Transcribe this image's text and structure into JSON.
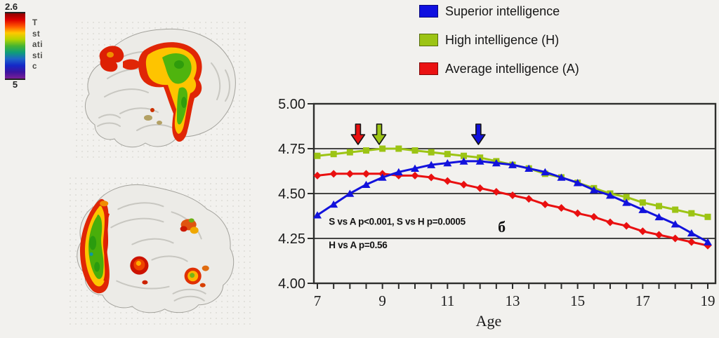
{
  "figure": {
    "background": "#f2f1ee",
    "axis_color": "#2e2e2c",
    "text_color": "#1c1c1c"
  },
  "colorbar": {
    "top_label": "2.6",
    "bottom_label": "5",
    "title": "T statistic",
    "title_vertical": [
      "T",
      "st",
      "ati",
      "sti",
      "c"
    ],
    "gradient": [
      "#8f0000",
      "#dd0000",
      "#ff5500",
      "#ffc800",
      "#b4d400",
      "#46b432",
      "#0f9e78",
      "#1e64c8",
      "#1428c8",
      "#3c14a0",
      "#7a1e96"
    ]
  },
  "legend": {
    "items": [
      {
        "label": "Superior intelligence",
        "color": "#0f10e0"
      },
      {
        "label": "High intelligence (H)",
        "color": "#9cc414"
      },
      {
        "label": "Average intelligence (A)",
        "color": "#ea1212"
      }
    ]
  },
  "chart_data": {
    "type": "line",
    "title": "",
    "xlabel": "Age",
    "ylabel": "",
    "xlim": [
      7,
      19
    ],
    "ylim": [
      4.0,
      5.0
    ],
    "grid": true,
    "legend_position": "top-right-outside",
    "x_tick_labels": [
      "7",
      "9",
      "11",
      "13",
      "15",
      "17",
      "19"
    ],
    "x_tick_values": [
      7,
      9,
      11,
      13,
      15,
      17,
      19
    ],
    "x_minor_tick_step": 0.5,
    "y_tick_labels": [
      "5.00",
      "4.75",
      "4.50",
      "4.25",
      "4.00"
    ],
    "y_tick_values": [
      5.0,
      4.75,
      4.5,
      4.25,
      4.0
    ],
    "grid_values": [
      4.75,
      4.5,
      4.25
    ],
    "x": [
      7,
      7.5,
      8,
      8.5,
      9,
      9.5,
      10,
      10.5,
      11,
      11.5,
      12,
      12.5,
      13,
      13.5,
      14,
      14.5,
      15,
      15.5,
      16,
      16.5,
      17,
      17.5,
      18,
      18.5,
      19
    ],
    "series": [
      {
        "name": "Superior intelligence",
        "color": "#1212dc",
        "marker": "triangle",
        "peak_age": 11.95,
        "values": [
          4.38,
          4.44,
          4.5,
          4.55,
          4.59,
          4.62,
          4.64,
          4.66,
          4.67,
          4.68,
          4.68,
          4.67,
          4.66,
          4.64,
          4.62,
          4.59,
          4.56,
          4.52,
          4.49,
          4.45,
          4.41,
          4.37,
          4.33,
          4.28,
          4.23
        ]
      },
      {
        "name": "High intelligence (H)",
        "color": "#9cc414",
        "marker": "square",
        "peak_age": 8.9,
        "values": [
          4.71,
          4.72,
          4.73,
          4.74,
          4.75,
          4.75,
          4.74,
          4.73,
          4.72,
          4.71,
          4.7,
          4.68,
          4.66,
          4.64,
          4.61,
          4.59,
          4.56,
          4.53,
          4.5,
          4.48,
          4.45,
          4.43,
          4.41,
          4.39,
          4.37
        ]
      },
      {
        "name": "Average intelligence (A)",
        "color": "#e91010",
        "marker": "diamond",
        "peak_age": 8.25,
        "values": [
          4.6,
          4.61,
          4.61,
          4.61,
          4.61,
          4.6,
          4.6,
          4.59,
          4.57,
          4.55,
          4.53,
          4.51,
          4.49,
          4.47,
          4.44,
          4.42,
          4.39,
          4.37,
          4.34,
          4.32,
          4.29,
          4.27,
          4.25,
          4.23,
          4.21
        ]
      }
    ],
    "annotations": [
      {
        "name": "stat-note-1",
        "text": "S vs A p<0.001, S vs H p=0.0005",
        "age": 7.35,
        "value": 4.34,
        "size": 13.5,
        "bold": true,
        "font": "sans"
      },
      {
        "name": "stat-note-2",
        "text": "H vs A p=0.56",
        "age": 7.35,
        "value": 4.21,
        "size": 13.5,
        "bold": true,
        "font": "sans"
      },
      {
        "name": "panel-label-b",
        "text": "б",
        "age": 12.55,
        "value": 4.305,
        "size": 22,
        "bold": true,
        "font": "serif"
      }
    ]
  }
}
